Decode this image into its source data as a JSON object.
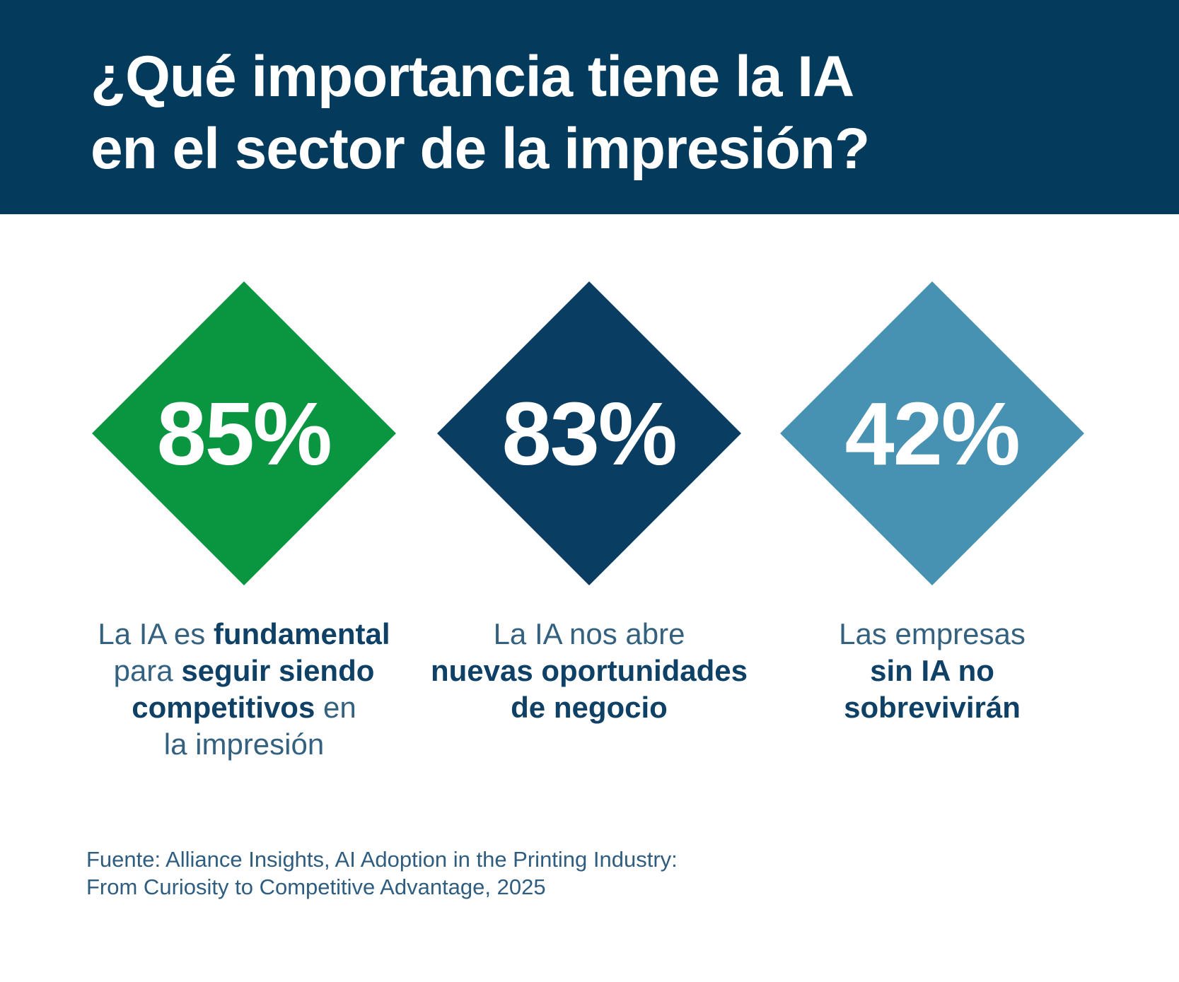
{
  "header": {
    "title_lines": [
      "¿Qué importancia tiene la IA",
      "en el sector de la impresión?"
    ],
    "bg_color": "#043a5c",
    "text_color": "#ffffff"
  },
  "stats": [
    {
      "value": "85%",
      "diamond_color": "#0a9640",
      "caption": {
        "lines": [
          {
            "pre": "La IA es ",
            "bold": "fundamental",
            "post": ""
          },
          {
            "pre": "para ",
            "bold": "seguir siendo",
            "post": ""
          },
          {
            "pre": "",
            "bold": "competitivos",
            "post": " en"
          },
          {
            "pre": "la impresión",
            "bold": "",
            "post": ""
          }
        ]
      }
    },
    {
      "value": "83%",
      "diamond_color": "#0a3d62",
      "caption": {
        "lines": [
          {
            "pre": "La IA nos abre",
            "bold": "",
            "post": ""
          },
          {
            "pre": "",
            "bold": "nuevas oportunidades",
            "post": ""
          },
          {
            "pre": "",
            "bold": "de negocio",
            "post": ""
          }
        ]
      }
    },
    {
      "value": "42%",
      "diamond_color": "#4791b2",
      "caption": {
        "lines": [
          {
            "pre": "Las empresas",
            "bold": "",
            "post": ""
          },
          {
            "pre": "",
            "bold": "sin IA no",
            "post": ""
          },
          {
            "pre": "",
            "bold": "sobrevivirán",
            "post": ""
          }
        ]
      }
    }
  ],
  "footer": {
    "source_lines": [
      "Fuente: Alliance Insights, AI Adoption in the Printing Industry:",
      "From Curiosity to Competitive Advantage, 2025"
    ],
    "text_color": "#2f5d80"
  },
  "chart_data": {
    "type": "bar",
    "title": "¿Qué importancia tiene la IA en el sector de la impresión?",
    "categories": [
      "La IA es fundamental para seguir siendo competitivos en la impresión",
      "La IA nos abre nuevas oportunidades de negocio",
      "Las empresas sin IA no sobrevivirán"
    ],
    "values": [
      85,
      83,
      42
    ],
    "unit": "%",
    "ylim": [
      0,
      100
    ],
    "colors": [
      "#0a9640",
      "#0a3d62",
      "#4791b2"
    ],
    "legend": "none",
    "source": "Fuente: Alliance Insights, AI Adoption in the Printing Industry: From Curiosity to Competitive Advantage, 2025"
  }
}
